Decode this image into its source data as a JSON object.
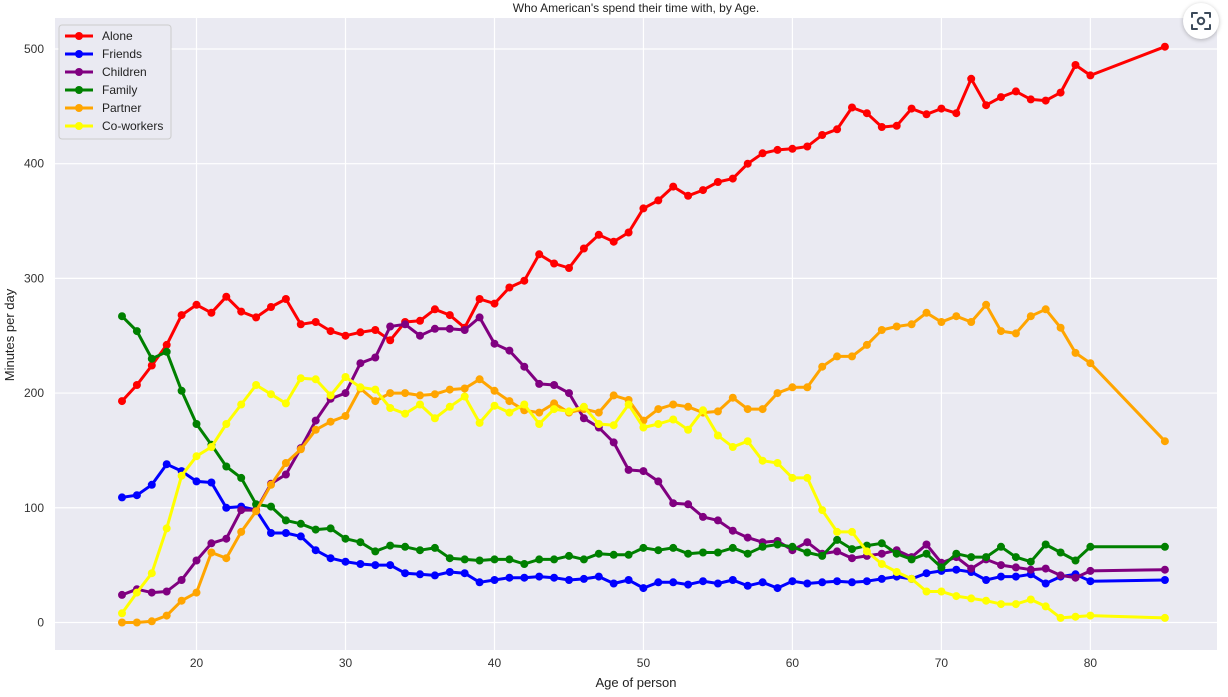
{
  "chart_data": {
    "type": "line",
    "title": "Who American's spend their time with, by Age.",
    "xlabel": "Age of person",
    "ylabel": "Minutes per day",
    "xlim": [
      10.5,
      88.5
    ],
    "ylim": [
      -24,
      527
    ],
    "xticks": [
      20,
      30,
      40,
      50,
      60,
      70,
      80
    ],
    "yticks": [
      0,
      100,
      200,
      300,
      400,
      500
    ],
    "grid": true,
    "legend_position": "top-left",
    "x": [
      15,
      16,
      17,
      18,
      19,
      20,
      21,
      22,
      23,
      24,
      25,
      26,
      27,
      28,
      29,
      30,
      31,
      32,
      33,
      34,
      35,
      36,
      37,
      38,
      39,
      40,
      41,
      42,
      43,
      44,
      45,
      46,
      47,
      48,
      49,
      50,
      51,
      52,
      53,
      54,
      55,
      56,
      57,
      58,
      59,
      60,
      61,
      62,
      63,
      64,
      65,
      66,
      67,
      68,
      69,
      70,
      71,
      72,
      73,
      74,
      75,
      76,
      77,
      78,
      79,
      80,
      85
    ],
    "series": [
      {
        "name": "Alone",
        "color": "#ff0000",
        "values": [
          193,
          207,
          224,
          242,
          268,
          277,
          270,
          284,
          271,
          266,
          275,
          282,
          260,
          262,
          254,
          250,
          253,
          255,
          246,
          262,
          263,
          273,
          268,
          257,
          282,
          278,
          292,
          298,
          321,
          313,
          309,
          326,
          338,
          332,
          340,
          361,
          368,
          380,
          372,
          377,
          384,
          387,
          400,
          409,
          412,
          413,
          415,
          425,
          430,
          449,
          444,
          432,
          433,
          448,
          443,
          448,
          444,
          474,
          451,
          458,
          463,
          456,
          455,
          462,
          486,
          477,
          502
        ]
      },
      {
        "name": "Friends",
        "color": "#0000ff",
        "values": [
          109,
          111,
          120,
          138,
          132,
          123,
          122,
          100,
          101,
          98,
          78,
          78,
          75,
          63,
          56,
          53,
          51,
          50,
          50,
          43,
          42,
          41,
          44,
          43,
          35,
          37,
          39,
          39,
          40,
          39,
          37,
          38,
          40,
          34,
          37,
          30,
          35,
          35,
          33,
          36,
          34,
          37,
          32,
          35,
          30,
          36,
          34,
          35,
          36,
          35,
          36,
          38,
          40,
          38,
          43,
          45,
          46,
          44,
          37,
          40,
          40,
          42,
          34,
          40,
          42,
          36,
          37
        ]
      },
      {
        "name": "Children",
        "color": "#800080",
        "values": [
          24,
          29,
          26,
          27,
          37,
          54,
          69,
          73,
          98,
          98,
          121,
          129,
          152,
          176,
          195,
          200,
          226,
          231,
          258,
          260,
          250,
          256,
          256,
          255,
          266,
          243,
          237,
          223,
          208,
          207,
          200,
          178,
          170,
          157,
          133,
          132,
          123,
          104,
          103,
          92,
          89,
          80,
          74,
          70,
          71,
          63,
          70,
          60,
          62,
          56,
          58,
          60,
          63,
          57,
          68,
          52,
          57,
          47,
          55,
          50,
          48,
          46,
          47,
          41,
          39,
          45,
          46
        ]
      },
      {
        "name": "Family",
        "color": "#008000",
        "values": [
          267,
          254,
          230,
          236,
          202,
          173,
          155,
          136,
          126,
          103,
          101,
          89,
          86,
          81,
          82,
          73,
          70,
          62,
          67,
          66,
          63,
          65,
          56,
          55,
          54,
          55,
          55,
          51,
          55,
          55,
          58,
          55,
          60,
          59,
          59,
          65,
          63,
          65,
          60,
          61,
          61,
          65,
          60,
          66,
          68,
          66,
          61,
          58,
          72,
          64,
          67,
          69,
          60,
          55,
          60,
          48,
          60,
          57,
          57,
          66,
          57,
          53,
          68,
          61,
          54,
          66,
          66
        ]
      },
      {
        "name": "Partner",
        "color": "#ffa500",
        "values": [
          0,
          0,
          1,
          6,
          19,
          26,
          61,
          56,
          79,
          97,
          120,
          139,
          151,
          168,
          175,
          180,
          204,
          193,
          200,
          200,
          198,
          199,
          203,
          204,
          212,
          202,
          193,
          185,
          183,
          191,
          183,
          186,
          183,
          198,
          194,
          176,
          186,
          190,
          188,
          183,
          184,
          196,
          186,
          186,
          200,
          205,
          205,
          223,
          232,
          232,
          242,
          255,
          258,
          260,
          270,
          262,
          267,
          262,
          277,
          254,
          252,
          267,
          273,
          257,
          235,
          226,
          158
        ]
      },
      {
        "name": "Co-workers",
        "color": "#ffff00",
        "values": [
          8,
          26,
          43,
          82,
          128,
          145,
          153,
          173,
          190,
          207,
          199,
          191,
          213,
          212,
          198,
          214,
          205,
          203,
          187,
          182,
          190,
          178,
          188,
          197,
          174,
          189,
          183,
          190,
          173,
          186,
          184,
          188,
          173,
          172,
          190,
          170,
          173,
          177,
          168,
          185,
          163,
          153,
          158,
          141,
          139,
          126,
          126,
          98,
          79,
          79,
          62,
          51,
          44,
          38,
          27,
          27,
          23,
          21,
          19,
          16,
          16,
          20,
          14,
          4,
          5,
          6,
          4
        ]
      }
    ]
  }
}
